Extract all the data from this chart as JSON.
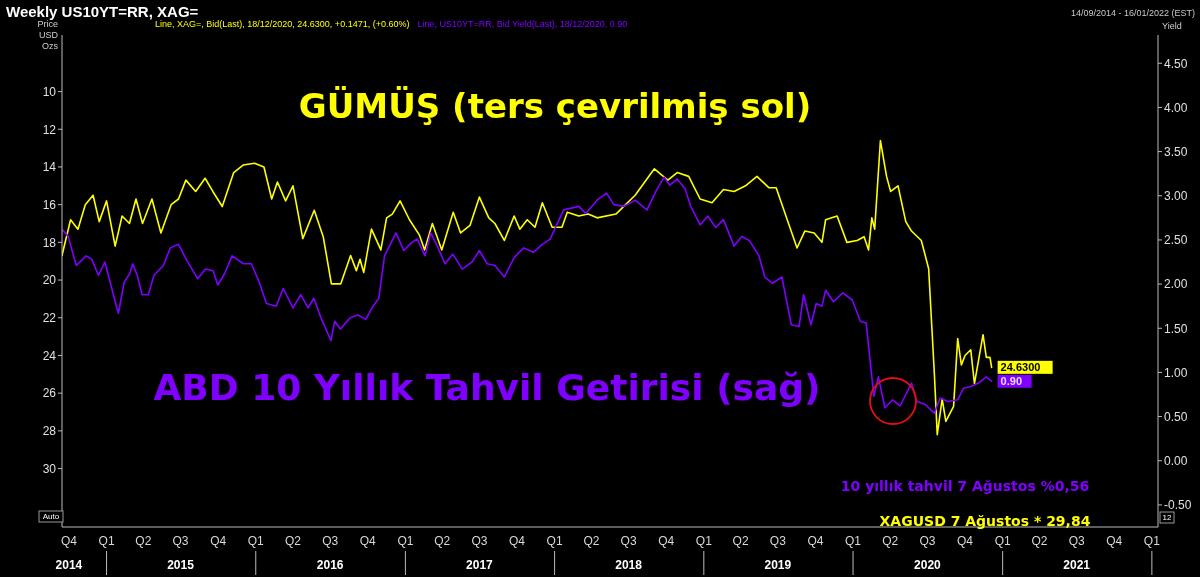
{
  "chart_data": {
    "type": "line",
    "title": "Weekly US10YT=RR, XAG=",
    "subtitle": "14/09/2014 - 16/01/2022 (EST)",
    "ylabel": "Price USD Ozs",
    "y2label": "Yield",
    "annotations": [
      "GÜMÜŞ (ters çevrilmiş sol)",
      "ABD 10 Yıllık Tahvil Getirisi (sağ)",
      "10 yıllık tahvil 7 Ağustos %0,56",
      "XAGUSD 7 Ağustos * 29,84",
      "Auto",
      "12"
    ],
    "xlim": [
      "2014-09-14",
      "2022-01-16"
    ],
    "xticks": [
      {
        "value": "2014-10-01",
        "label": "Q4\n2014"
      },
      {
        "value": "2015-01-01",
        "label": "Q1"
      },
      {
        "value": "2015-04-01",
        "label": "Q2"
      },
      {
        "value": "2015-07-01",
        "label": "Q3\n2015"
      },
      {
        "value": "2015-10-01",
        "label": "Q4"
      },
      {
        "value": "2016-01-01",
        "label": "Q1"
      },
      {
        "value": "2016-04-01",
        "label": "Q2"
      },
      {
        "value": "2016-07-01",
        "label": "Q3\n2016"
      },
      {
        "value": "2016-10-01",
        "label": "Q4"
      },
      {
        "value": "2017-01-01",
        "label": "Q1"
      },
      {
        "value": "2017-04-01",
        "label": "Q2"
      },
      {
        "value": "2017-07-01",
        "label": "Q3\n2017"
      },
      {
        "value": "2017-10-01",
        "label": "Q4"
      },
      {
        "value": "2018-01-01",
        "label": "Q1"
      },
      {
        "value": "2018-04-01",
        "label": "Q2"
      },
      {
        "value": "2018-07-01",
        "label": "Q3\n2018"
      },
      {
        "value": "2018-10-01",
        "label": "Q4"
      },
      {
        "value": "2019-01-01",
        "label": "Q1"
      },
      {
        "value": "2019-04-01",
        "label": "Q2"
      },
      {
        "value": "2019-07-01",
        "label": "Q3\n2019"
      },
      {
        "value": "2019-10-01",
        "label": "Q4"
      },
      {
        "value": "2020-01-01",
        "label": "Q1"
      },
      {
        "value": "2020-04-01",
        "label": "Q2"
      },
      {
        "value": "2020-07-01",
        "label": "Q3\n2020"
      },
      {
        "value": "2020-10-01",
        "label": "Q4"
      },
      {
        "value": "2021-01-01",
        "label": "Q1"
      },
      {
        "value": "2021-04-01",
        "label": "Q2"
      },
      {
        "value": "2021-07-01",
        "label": "Q3\n2021"
      },
      {
        "value": "2021-10-01",
        "label": "Q4"
      },
      {
        "value": "2022-01-01",
        "label": "Q1"
      }
    ],
    "ylim": [
      33.1,
      7.0
    ],
    "yticks": [
      10,
      12,
      14,
      16,
      18,
      20,
      22,
      24,
      26,
      28,
      30
    ],
    "y2lim": [
      -0.75,
      4.82
    ],
    "y2ticks": [
      {
        "value": -0.5,
        "label": "-0.50"
      },
      {
        "value": 0,
        "label": "0.00"
      },
      {
        "value": 0.5,
        "label": "0.50"
      },
      {
        "value": 1,
        "label": "1.00"
      },
      {
        "value": 1.5,
        "label": "1.50"
      },
      {
        "value": 2,
        "label": "2.00"
      },
      {
        "value": 2.5,
        "label": "2.50"
      },
      {
        "value": 3,
        "label": "3.00"
      },
      {
        "value": 3.5,
        "label": "3.50"
      },
      {
        "value": 4,
        "label": "4.00"
      },
      {
        "value": 4.5,
        "label": "4.50"
      }
    ],
    "grid": false,
    "legend": "top left",
    "marker": "none",
    "line_style": "solid",
    "series": [
      {
        "name": "Line, XAG=, Bid(Last), 18/12/2020, 24.6300, +0.1471, (+0.60%)",
        "color": "#ffff00",
        "axis": "y",
        "x": [
          "2014-09-14",
          "2014-10-05",
          "2014-10-23",
          "2014-11-10",
          "2014-11-29",
          "2014-12-14",
          "2015-01-01",
          "2015-01-22",
          "2015-02-08",
          "2015-02-26",
          "2015-03-14",
          "2015-03-30",
          "2015-04-22",
          "2015-05-14",
          "2015-06-08",
          "2015-06-26",
          "2015-07-14",
          "2015-08-07",
          "2015-08-30",
          "2015-09-18",
          "2015-10-11",
          "2015-11-08",
          "2015-12-01",
          "2015-12-29",
          "2016-01-21",
          "2016-02-09",
          "2016-02-23",
          "2016-03-14",
          "2016-04-01",
          "2016-04-25",
          "2016-05-23",
          "2016-06-14",
          "2016-07-04",
          "2016-07-27",
          "2016-08-20",
          "2016-09-03",
          "2016-09-12",
          "2016-09-21",
          "2016-10-10",
          "2016-11-02",
          "2016-11-16",
          "2016-11-30",
          "2016-12-19",
          "2017-01-11",
          "2017-02-04",
          "2017-02-17",
          "2017-03-08",
          "2017-03-31",
          "2017-04-28",
          "2017-05-16",
          "2017-06-08",
          "2017-07-01",
          "2017-07-24",
          "2017-08-08",
          "2017-08-31",
          "2017-09-24",
          "2017-10-08",
          "2017-10-26",
          "2017-11-14",
          "2017-12-02",
          "2017-12-26",
          "2018-01-19",
          "2018-02-01",
          "2018-03-01",
          "2018-03-24",
          "2018-04-15",
          "2018-05-31",
          "2018-07-17",
          "2018-09-02",
          "2018-10-05",
          "2018-10-28",
          "2018-11-25",
          "2018-12-23",
          "2019-01-21",
          "2019-02-18",
          "2019-03-16",
          "2019-04-13",
          "2019-05-11",
          "2019-06-09",
          "2019-06-27",
          "2019-07-16",
          "2019-08-17",
          "2019-09-05",
          "2019-09-28",
          "2019-10-17",
          "2019-10-26",
          "2019-11-23",
          "2019-12-17",
          "2020-01-11",
          "2020-01-28",
          "2020-02-08",
          "2020-02-16",
          "2020-02-23",
          "2020-03-08",
          "2020-03-23",
          "2020-04-02",
          "2020-04-20",
          "2020-05-09",
          "2020-05-23",
          "2020-06-16",
          "2020-07-04",
          "2020-07-18",
          "2020-07-25",
          "2020-08-06",
          "2020-08-15",
          "2020-09-03",
          "2020-09-13",
          "2020-09-22",
          "2020-10-01",
          "2020-10-15",
          "2020-10-24",
          "2020-11-14",
          "2020-11-22",
          "2020-12-01",
          "2020-12-05"
        ],
        "values": [
          18.7,
          16.8,
          17.3,
          16.0,
          15.5,
          16.9,
          15.8,
          18.2,
          16.6,
          17.0,
          15.7,
          17.0,
          15.7,
          17.5,
          16.0,
          15.7,
          14.7,
          15.3,
          14.6,
          15.3,
          16.1,
          14.3,
          13.9,
          13.8,
          14.0,
          15.7,
          14.8,
          15.8,
          15.0,
          17.8,
          16.3,
          17.7,
          20.2,
          20.2,
          18.7,
          19.5,
          18.9,
          19.6,
          17.3,
          18.4,
          16.7,
          16.5,
          15.8,
          16.8,
          17.6,
          18.4,
          17.0,
          18.4,
          16.4,
          17.5,
          17.1,
          15.6,
          16.7,
          17.0,
          17.9,
          16.6,
          17.3,
          16.8,
          17.2,
          15.9,
          17.2,
          17.2,
          16.4,
          16.6,
          16.5,
          16.7,
          16.5,
          15.5,
          14.1,
          14.7,
          14.3,
          14.5,
          15.7,
          15.9,
          15.2,
          15.3,
          15.0,
          14.5,
          15.1,
          15.1,
          16.3,
          18.3,
          17.4,
          17.5,
          18.0,
          16.8,
          16.6,
          18.0,
          17.9,
          17.7,
          18.4,
          16.7,
          17.3,
          12.6,
          14.5,
          15.3,
          15.0,
          16.9,
          17.4,
          17.9,
          19.4,
          25.0,
          28.2,
          26.3,
          27.5,
          26.7,
          23.1,
          24.5,
          24.0,
          23.7,
          25.5,
          22.9,
          24.1,
          24.1,
          24.63
        ],
        "value_labels": [
          null,
          null,
          null,
          null,
          null,
          null,
          null,
          null,
          null,
          null,
          null,
          null,
          null,
          null,
          null,
          null,
          null,
          null,
          null,
          null,
          null,
          null,
          null,
          null,
          null,
          null,
          null,
          null,
          null,
          null,
          null,
          null,
          null,
          null,
          null,
          null,
          null,
          null,
          null,
          null,
          null,
          null,
          null,
          null,
          null,
          null,
          null,
          null,
          null,
          null,
          null,
          null,
          null,
          null,
          null,
          null,
          null,
          null,
          null,
          null,
          null,
          null,
          null,
          null,
          null,
          null,
          null,
          null,
          null,
          null,
          null,
          null,
          null,
          null,
          null,
          null,
          null,
          null,
          null,
          null,
          null,
          null,
          null,
          null,
          null,
          null,
          null,
          null,
          null,
          null,
          null,
          null,
          null,
          null,
          null,
          null,
          null,
          null,
          null,
          null,
          null,
          null,
          null,
          null,
          null,
          null,
          null,
          null,
          null,
          null,
          null,
          null,
          null,
          null,
          "24.6300"
        ]
      },
      {
        "name": "Line, US10YT=RR, Bid Yield(Last), 18/12/2020, 0.90",
        "color": "#8000ff",
        "axis": "y2",
        "x": [
          "2014-09-14",
          "2014-09-29",
          "2014-10-19",
          "2014-11-12",
          "2014-11-26",
          "2014-12-12",
          "2014-12-28",
          "2015-01-20",
          "2015-01-30",
          "2015-02-13",
          "2015-02-27",
          "2015-03-06",
          "2015-03-17",
          "2015-03-29",
          "2015-04-13",
          "2015-04-27",
          "2015-05-20",
          "2015-06-06",
          "2015-06-26",
          "2015-07-15",
          "2015-08-12",
          "2015-08-31",
          "2015-09-19",
          "2015-09-30",
          "2015-10-17",
          "2015-11-04",
          "2015-12-02",
          "2015-12-21",
          "2016-01-08",
          "2016-01-27",
          "2016-02-20",
          "2016-03-08",
          "2016-04-01",
          "2016-04-20",
          "2016-05-08",
          "2016-05-22",
          "2016-06-10",
          "2016-07-03",
          "2016-07-12",
          "2016-07-26",
          "2016-08-19",
          "2016-09-07",
          "2016-09-26",
          "2016-10-14",
          "2016-10-28",
          "2016-11-11",
          "2016-12-09",
          "2016-12-28",
          "2017-01-16",
          "2017-01-30",
          "2017-02-18",
          "2017-03-04",
          "2017-03-20",
          "2017-04-08",
          "2017-04-27",
          "2017-05-20",
          "2017-06-13",
          "2017-07-01",
          "2017-07-20",
          "2017-08-08",
          "2017-08-31",
          "2017-09-24",
          "2017-10-17",
          "2017-11-10",
          "2017-12-02",
          "2017-12-21",
          "2018-01-23",
          "2018-02-11",
          "2018-03-01",
          "2018-03-18",
          "2018-04-15",
          "2018-05-08",
          "2018-05-26",
          "2018-06-19",
          "2018-07-17",
          "2018-08-15",
          "2018-09-07",
          "2018-09-26",
          "2018-10-10",
          "2018-10-28",
          "2018-11-16",
          "2018-11-30",
          "2018-12-23",
          "2019-01-11",
          "2019-01-30",
          "2019-02-18",
          "2019-03-16",
          "2019-04-04",
          "2019-04-23",
          "2019-05-16",
          "2019-05-30",
          "2019-06-18",
          "2019-07-11",
          "2019-08-03",
          "2019-08-22",
          "2019-09-02",
          "2019-09-20",
          "2019-10-03",
          "2019-10-17",
          "2019-10-26",
          "2019-11-14",
          "2019-12-07",
          "2019-12-30",
          "2020-01-19",
          "2020-02-02",
          "2020-02-21",
          "2020-03-03",
          "2020-03-19",
          "2020-04-07",
          "2020-04-25",
          "2020-05-23",
          "2020-06-05",
          "2020-06-25",
          "2020-07-18",
          "2020-08-01",
          "2020-08-20",
          "2020-09-13",
          "2020-09-27",
          "2020-10-15",
          "2020-11-03",
          "2020-11-22",
          "2020-12-05"
        ],
        "values": [
          2.62,
          2.54,
          2.21,
          2.32,
          2.28,
          2.1,
          2.25,
          1.84,
          1.67,
          2.02,
          2.12,
          2.23,
          2.1,
          1.88,
          1.88,
          2.1,
          2.21,
          2.41,
          2.45,
          2.28,
          2.06,
          2.17,
          2.15,
          1.99,
          2.12,
          2.32,
          2.23,
          2.23,
          2.04,
          1.78,
          1.75,
          1.95,
          1.73,
          1.88,
          1.73,
          1.84,
          1.6,
          1.36,
          1.58,
          1.49,
          1.62,
          1.65,
          1.6,
          1.75,
          1.84,
          2.32,
          2.58,
          2.38,
          2.47,
          2.51,
          2.32,
          2.58,
          2.43,
          2.23,
          2.34,
          2.17,
          2.25,
          2.38,
          2.23,
          2.21,
          2.08,
          2.3,
          2.41,
          2.36,
          2.45,
          2.51,
          2.84,
          2.86,
          2.88,
          2.8,
          2.95,
          3.03,
          2.9,
          2.88,
          2.95,
          2.84,
          3.06,
          3.21,
          3.12,
          3.19,
          3.08,
          2.88,
          2.67,
          2.77,
          2.64,
          2.73,
          2.43,
          2.54,
          2.49,
          2.32,
          2.08,
          2.01,
          2.08,
          1.54,
          1.52,
          1.88,
          1.54,
          1.78,
          1.75,
          1.93,
          1.8,
          1.9,
          1.82,
          1.58,
          1.56,
          0.73,
          0.95,
          0.6,
          0.69,
          0.62,
          0.88,
          0.67,
          0.64,
          0.54,
          0.71,
          0.67,
          0.69,
          0.82,
          0.84,
          0.88,
          0.95,
          0.9
        ],
        "value_labels": [
          null,
          null,
          null,
          null,
          null,
          null,
          null,
          null,
          null,
          null,
          null,
          null,
          null,
          null,
          null,
          null,
          null,
          null,
          null,
          null,
          null,
          null,
          null,
          null,
          null,
          null,
          null,
          null,
          null,
          null,
          null,
          null,
          null,
          null,
          null,
          null,
          null,
          null,
          null,
          null,
          null,
          null,
          null,
          null,
          null,
          null,
          null,
          null,
          null,
          null,
          null,
          null,
          null,
          null,
          null,
          null,
          null,
          null,
          null,
          null,
          null,
          null,
          null,
          null,
          null,
          null,
          null,
          null,
          null,
          null,
          null,
          null,
          null,
          null,
          null,
          null,
          null,
          null,
          null,
          null,
          null,
          null,
          null,
          null,
          null,
          null,
          null,
          null,
          null,
          null,
          null,
          null,
          null,
          null,
          null,
          null,
          null,
          null,
          null,
          null,
          null,
          null,
          null,
          null,
          null,
          null,
          null,
          null,
          null,
          null,
          null,
          null,
          null,
          null,
          null,
          null,
          null,
          null,
          null,
          null,
          null,
          "0.90"
        ]
      }
    ]
  }
}
